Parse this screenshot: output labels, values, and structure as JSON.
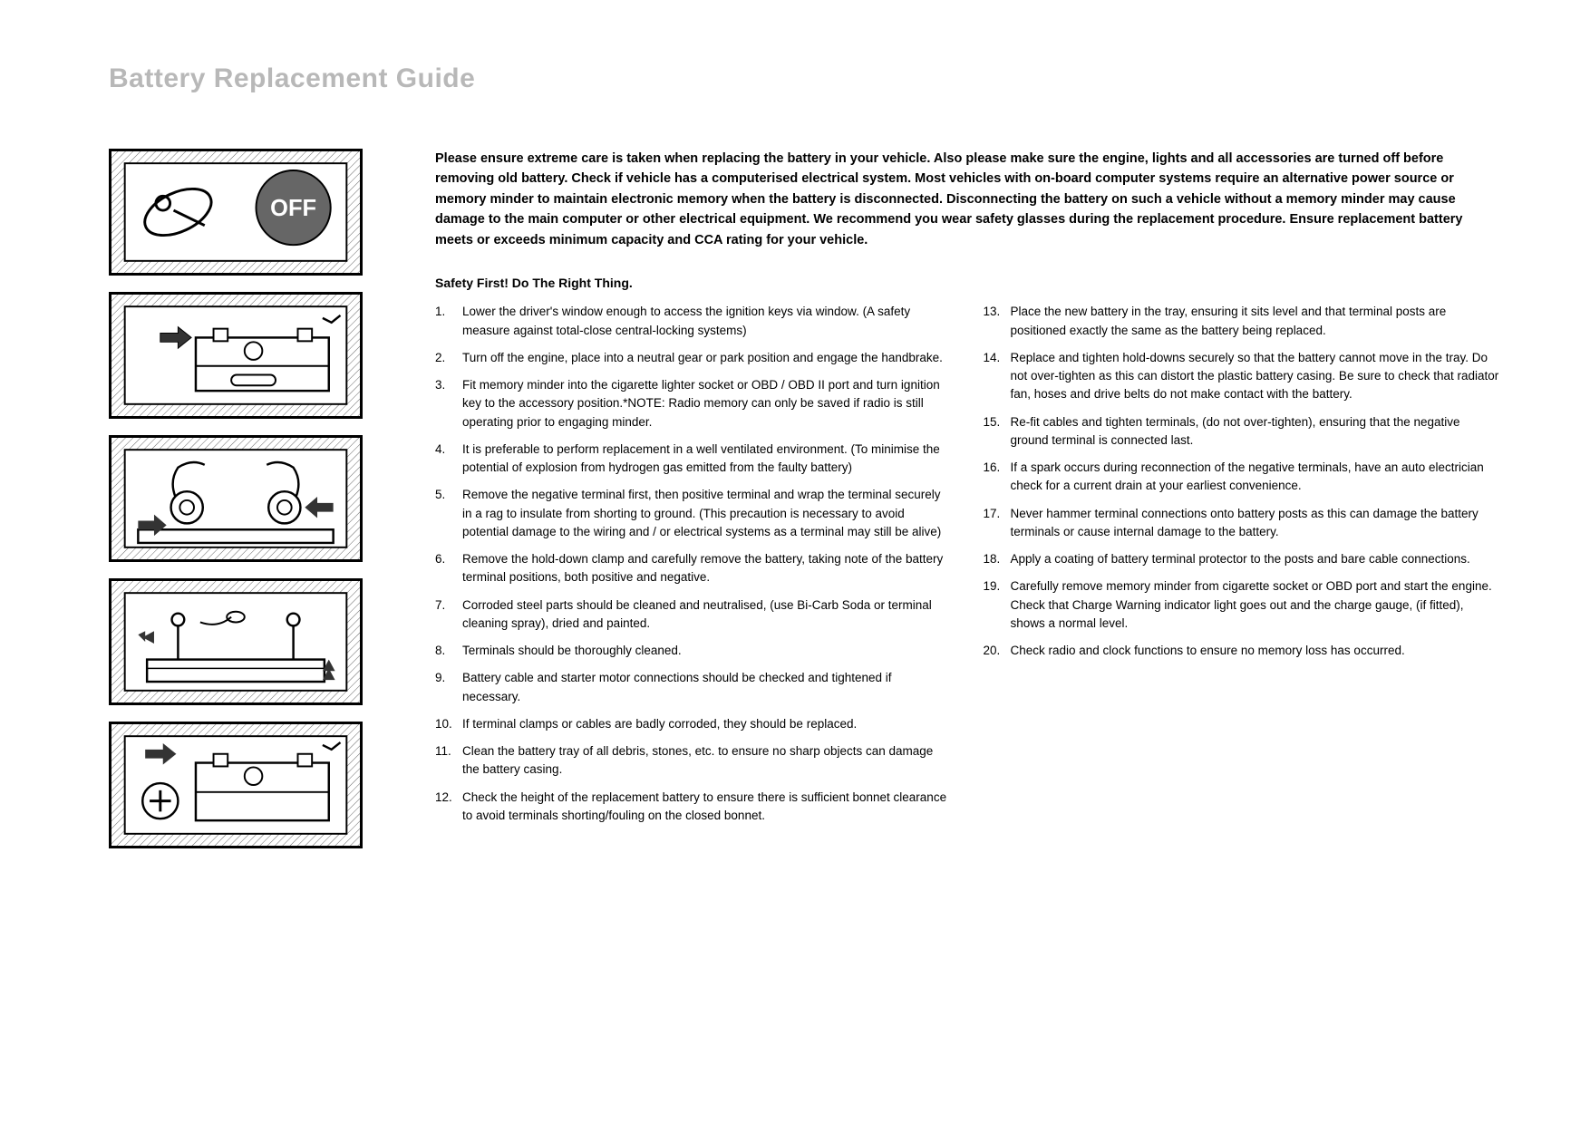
{
  "title": "Battery Replacement Guide",
  "warning": "Please ensure extreme care is taken when replacing the battery in your vehicle. Also please make sure the engine, lights and all accessories are turned off before removing old battery. Check if vehicle has a computerised electrical system. Most vehicles with on-board computer systems require an alternative power source or memory minder to maintain electronic memory when the battery is disconnected. Disconnecting the battery on such a vehicle without a memory minder may cause damage to the main computer or other electrical equipment. We recommend you wear safety glasses during the replacement procedure. Ensure replacement battery meets or exceeds minimum capacity and CCA rating for your vehicle.",
  "safety_heading": "Safety First! Do The Right Thing.",
  "steps_left": [
    {
      "n": "1.",
      "text": "Lower the driver's window enough to access the ignition keys via window. (A safety measure against total-close central-locking systems)"
    },
    {
      "n": "2.",
      "text": "Turn off the engine, place into a neutral gear or park position and engage the handbrake."
    },
    {
      "n": "3.",
      "text": "Fit memory minder into the cigarette lighter socket or OBD / OBD II port and turn ignition key to the accessory position.*NOTE: Radio memory can only be saved if radio is still operating prior to engaging minder."
    },
    {
      "n": "4.",
      "text": "It is preferable to perform replacement in a well ventilated environment. (To minimise the potential of explosion from hydrogen gas emitted from the faulty battery)"
    },
    {
      "n": "5.",
      "text": "Remove the negative terminal first, then positive terminal and wrap the terminal securely in a rag to insulate from shorting to ground. (This precaution is necessary to avoid potential damage to the wiring and / or electrical systems as a terminal may still be alive)"
    },
    {
      "n": "6.",
      "text": "Remove the hold-down clamp and carefully remove the battery, taking note of the battery terminal positions, both positive and negative."
    },
    {
      "n": "7.",
      "text": "Corroded steel parts should be cleaned and neutralised, (use Bi-Carb Soda or terminal cleaning spray), dried and painted."
    },
    {
      "n": "8.",
      "text": "Terminals should be thoroughly cleaned."
    },
    {
      "n": "9.",
      "text": "Battery cable and starter motor connections should be checked and tightened if necessary."
    },
    {
      "n": "10.",
      "text": "If terminal clamps or cables are badly corroded, they should be replaced."
    },
    {
      "n": "11.",
      "text": "Clean the battery tray of all debris, stones, etc. to ensure no sharp objects can damage the battery casing."
    },
    {
      "n": "12.",
      "text": "Check the height of the replacement battery to ensure there is sufficient bonnet clearance to avoid terminals shorting/fouling on the closed bonnet."
    }
  ],
  "steps_right": [
    {
      "n": "13.",
      "text": "Place the new battery in the tray, ensuring it sits level and that terminal posts are positioned exactly the same as the battery being replaced."
    },
    {
      "n": "14.",
      "text": "Replace and tighten hold-downs securely so that the battery cannot move in the tray. Do not over-tighten as this can distort the plastic battery casing. Be sure to check that radiator fan, hoses and drive belts do not make contact with the battery."
    },
    {
      "n": "15.",
      "text": "Re-fit cables and tighten terminals, (do not over-tighten), ensuring that the negative ground terminal is connected last."
    },
    {
      "n": "16.",
      "text": "If a spark occurs during reconnection of the negative terminals, have an auto electrician check for a current drain at your earliest convenience."
    },
    {
      "n": "17.",
      "text": "Never hammer terminal connections onto battery posts as this can damage the battery terminals or cause internal damage to the battery."
    },
    {
      "n": "18.",
      "text": "Apply a coating of battery terminal protector to the posts and bare cable connections."
    },
    {
      "n": "19.",
      "text": "Carefully remove memory minder from cigarette socket or OBD port and start the engine. Check that Charge Warning indicator light goes out and the charge gauge, (if fitted), shows a normal level."
    },
    {
      "n": "20.",
      "text": "Check radio and clock functions to ensure no memory loss has occurred."
    }
  ],
  "diagrams": [
    {
      "name": "ignition-off-diagram",
      "label": "OFF"
    },
    {
      "name": "battery-terminals-diagram",
      "label": ""
    },
    {
      "name": "terminal-removal-diagram",
      "label": ""
    },
    {
      "name": "clamp-removal-diagram",
      "label": ""
    },
    {
      "name": "battery-install-diagram",
      "label": ""
    }
  ],
  "colors": {
    "title_color": "#b8b8b8",
    "text_color": "#000000",
    "background": "#ffffff",
    "border": "#000000"
  }
}
